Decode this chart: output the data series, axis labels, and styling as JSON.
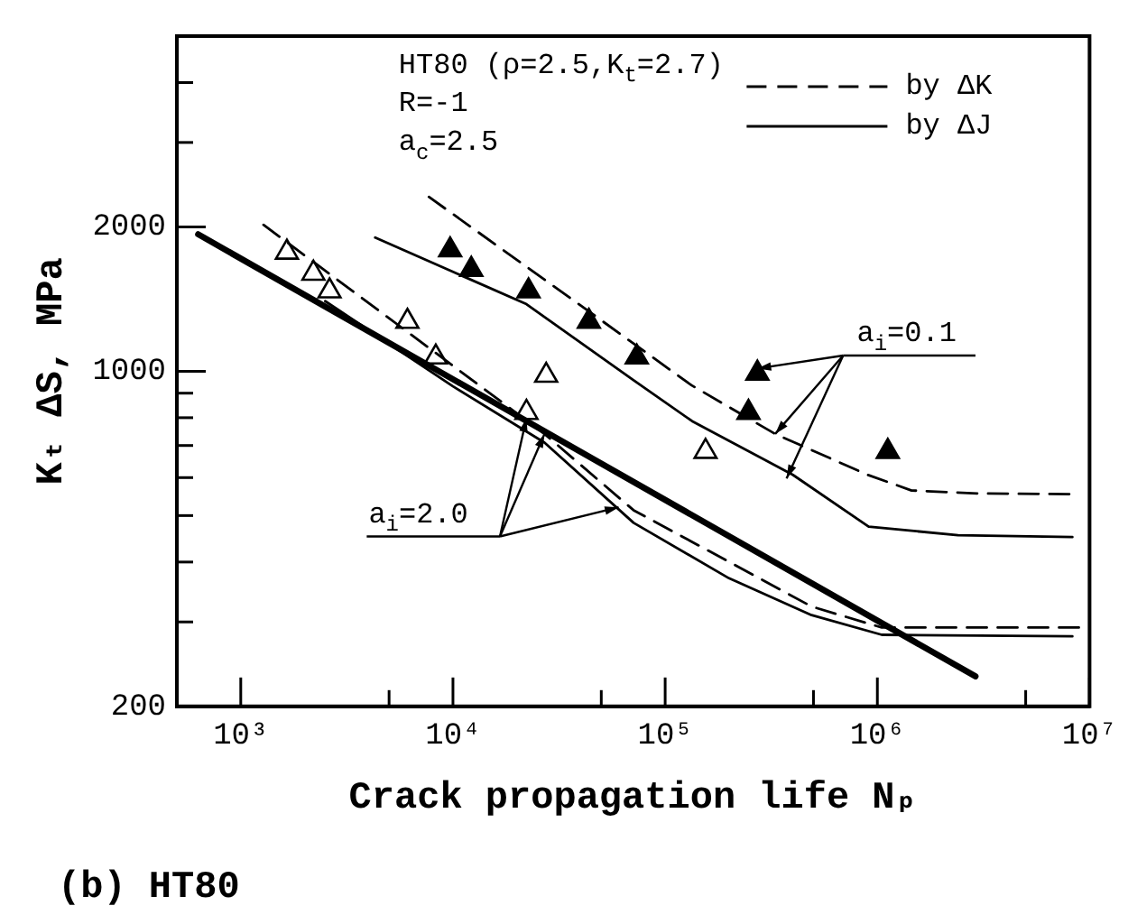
{
  "chart_data": {
    "type": "line",
    "title": "(b) HT80",
    "xlabel": "Crack propagation life Nₚ",
    "ylabel": "Kₜ ΔS, MPa",
    "log": "xy",
    "grid": false,
    "legend": "top right",
    "xlim": [
      500,
      10000000
    ],
    "ylim": [
      200,
      5000
    ],
    "xticks": [
      {
        "value": 1000,
        "label": "10³"
      },
      {
        "value": 5000,
        "label": null
      },
      {
        "value": 10000,
        "label": "10⁴"
      },
      {
        "value": 50000,
        "label": null
      },
      {
        "value": 100000,
        "label": "10⁵"
      },
      {
        "value": 500000,
        "label": null
      },
      {
        "value": 1000000,
        "label": "10⁶"
      },
      {
        "value": 5000000,
        "label": null
      },
      {
        "value": 10000000,
        "label": "10⁷"
      }
    ],
    "yticks": [
      200,
      {
        "value": 300,
        "label": null
      },
      {
        "value": 400,
        "label": null
      },
      {
        "value": 500,
        "label": null
      },
      {
        "value": 600,
        "label": null
      },
      {
        "value": 700,
        "label": null
      },
      {
        "value": 800,
        "label": null
      },
      {
        "value": 900,
        "label": null
      },
      1000,
      2000,
      {
        "value": 3000,
        "label": null
      },
      {
        "value": 4000,
        "label": null
      }
    ],
    "series": [
      {
        "name": "by ΔK",
        "line_style": "dashed",
        "marker": "none",
        "color": "#000000",
        "x": [
          7700,
          42000,
          133000,
          330000,
          900000,
          1450000,
          3000000,
          9000000,
          null,
          1280,
          10200,
          27000,
          71000,
          490000,
          1050000,
          3000000,
          9000000
        ],
        "values": [
          2310,
          1350,
          935,
          740,
          608,
          564,
          556,
          554,
          null,
          2020,
          1020,
          740,
          513,
          323,
          292,
          292,
          292
        ]
      },
      {
        "name": "by ΔJ",
        "line_style": "solid",
        "marker": "none",
        "color": "#000000",
        "x": [
          4300,
          22200,
          71000,
          134000,
          400000,
          910000,
          2400000,
          8300000,
          null,
          2500,
          10000,
          27000,
          71000,
          200000,
          490000,
          1050000,
          8300000
        ],
        "values": [
          1900,
          1380,
          958,
          787,
          608,
          474,
          455,
          451,
          null,
          1400,
          930,
          710,
          483,
          370,
          310,
          282,
          280
        ]
      },
      {
        "line_style": "solid",
        "marker": "none",
        "color": "#000000",
        "x": [
          630,
          2900000
        ],
        "values": [
          1930,
          231
        ]
      },
      {
        "type": "scatter",
        "marker": "triangle",
        "color": "#ffffff",
        "x": [
          1650,
          2200,
          2620,
          6100,
          8300,
          27500,
          22200,
          155000
        ],
        "values": [
          1770,
          1600,
          1470,
          1270,
          1070,
          980,
          820,
          680
        ]
      },
      {
        "type": "scatter",
        "marker": "triangle",
        "color": "#000000",
        "x": [
          9700,
          12200,
          22700,
          43700,
          73500,
          272000,
          247000,
          1120000
        ],
        "values": [
          1790,
          1630,
          1470,
          1270,
          1070,
          990,
          820,
          680
        ]
      }
    ],
    "annotations": [
      "HT80 (ρ=2.5,K$_{t}$=2.7)",
      "R=-1",
      "a$_{c}$=2.5",
      {
        "text": "a$_{i}$=0.1",
        "x": 330000,
        "y": 740
      },
      {
        "text": "a$_{i}$=2.0",
        "x": 27000,
        "y": 740
      }
    ]
  }
}
